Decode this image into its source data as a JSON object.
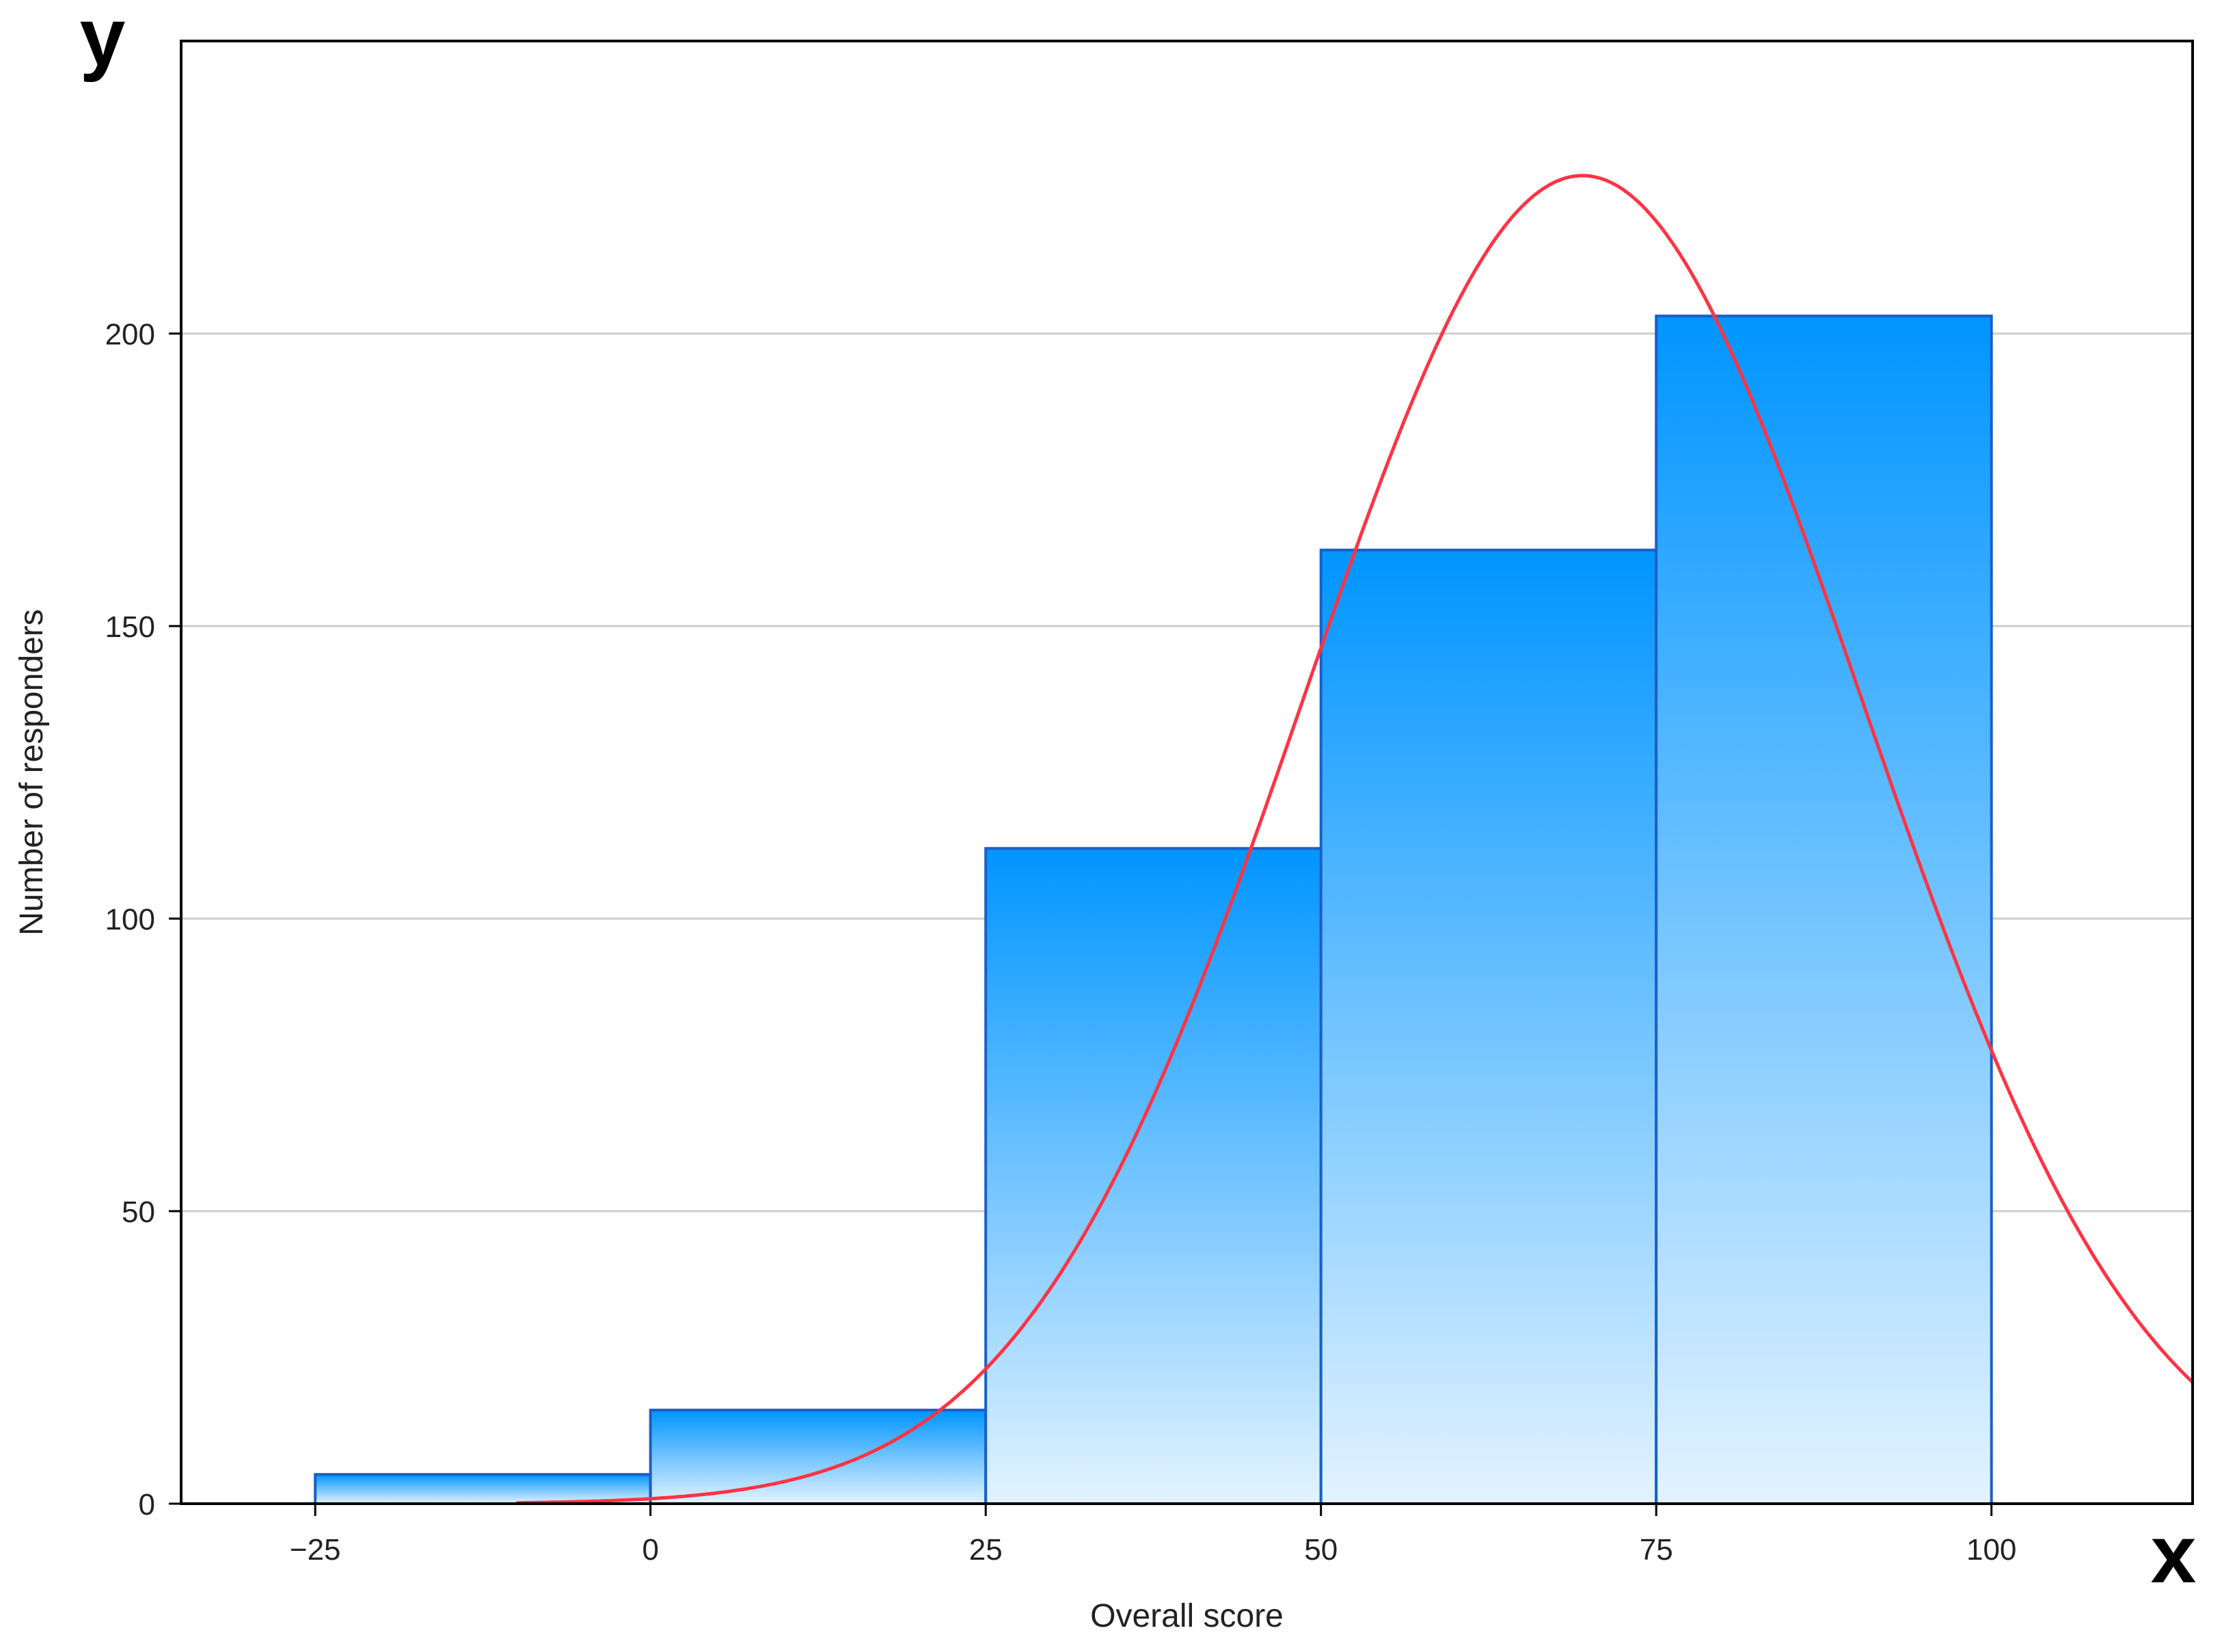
{
  "chart_data": {
    "type": "bar",
    "subtype": "histogram",
    "title": "",
    "xlabel": "Overall score",
    "ylabel": "Number of responders",
    "corner_labels": {
      "x": "x",
      "y": "y"
    },
    "xlim": [
      -35,
      115
    ],
    "ylim": [
      0,
      250
    ],
    "xticks": [
      -25,
      0,
      25,
      50,
      75,
      100
    ],
    "xtick_labels": [
      "−25",
      "0",
      "25",
      "50",
      "75",
      "100"
    ],
    "yticks": [
      0,
      50,
      100,
      150,
      200
    ],
    "ytick_labels": [
      "0",
      "50",
      "100",
      "150",
      "200"
    ],
    "grid": "horizontal",
    "bins": [
      {
        "start": -25,
        "end": 0,
        "value": 5
      },
      {
        "start": 0,
        "end": 25,
        "value": 16
      },
      {
        "start": 25,
        "end": 50,
        "value": 112
      },
      {
        "start": 50,
        "end": 75,
        "value": 163
      },
      {
        "start": 75,
        "end": 100,
        "value": 203
      }
    ],
    "fitted_curve": {
      "type": "normal",
      "mean": 69.5,
      "sd": 20.8,
      "peak": 227,
      "x_start": -10,
      "x_end": 115
    },
    "colors": {
      "bar_top": "#0095ff",
      "bar_bottom": "#e3f3ff",
      "bar_border": "#1a5fc8",
      "curve": "#ff3344",
      "grid": "#cccccc",
      "axis": "#000000"
    }
  }
}
